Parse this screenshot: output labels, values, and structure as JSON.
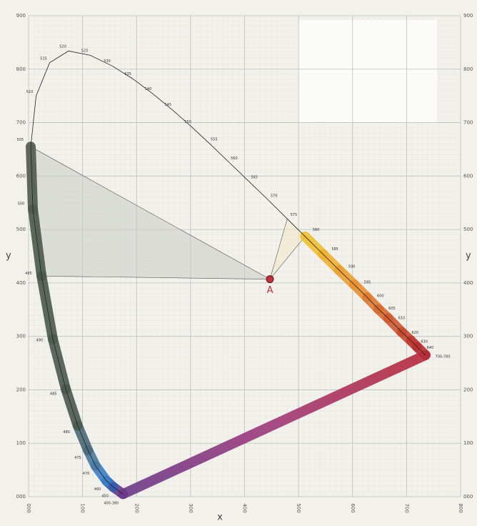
{
  "chart_data": {
    "type": "chromaticity",
    "x_label": "x",
    "y_label": "y",
    "xlim": [
      0,
      800
    ],
    "ylim": [
      0,
      900
    ],
    "xticks": [
      {
        "value": 0,
        "label": "000"
      },
      100,
      200,
      300,
      400,
      500,
      600,
      700,
      800
    ],
    "yticks": [
      {
        "value": 0,
        "label": "000"
      },
      100,
      200,
      300,
      400,
      500,
      600,
      700,
      800,
      900
    ],
    "grid": true,
    "locus": {
      "labels": [
        "400-380",
        "450",
        "460",
        "470",
        "475",
        "480",
        "485",
        "490",
        "495",
        "500",
        "505",
        "510",
        "515",
        "520",
        "525",
        "530",
        "535",
        "540",
        "545",
        "550",
        "555",
        "560",
        "565",
        "570",
        "575",
        "580",
        "585",
        "590",
        "595",
        "600",
        "605",
        "610",
        "620",
        "630",
        "640",
        "700-780"
      ],
      "x": [
        175,
        157,
        144,
        124,
        110,
        91,
        69,
        45,
        24,
        8,
        4,
        14,
        39,
        74,
        114,
        155,
        193,
        230,
        266,
        302,
        337,
        373,
        409,
        444,
        479,
        512,
        545,
        575,
        603,
        627,
        648,
        666,
        691,
        708,
        719,
        735
      ],
      "y": [
        5,
        18,
        30,
        58,
        87,
        133,
        201,
        295,
        413,
        538,
        655,
        750,
        812,
        834,
        826,
        806,
        782,
        754,
        724,
        692,
        659,
        624,
        589,
        555,
        520,
        487,
        454,
        424,
        397,
        373,
        351,
        334,
        308,
        292,
        281,
        265
      ],
      "colors": [
        "#6a3a8a",
        "#3060b0",
        "#3a80c8",
        "#4a7aa0",
        "#4a6a78",
        "#4a5a50",
        "#4a5a50",
        "#4a5a4a",
        "#4a5a4a",
        "#505a4e",
        "#505a4e",
        null,
        null,
        null,
        null,
        null,
        null,
        null,
        null,
        null,
        null,
        null,
        null,
        null,
        null,
        "#f0c030",
        "#f0b030",
        "#eca030",
        "#e89030",
        "#e07a30",
        "#d86a30",
        "#d05a30",
        "#c84a30",
        "#c03a30",
        "#b83030",
        "#b02a3a"
      ]
    },
    "point": {
      "label": "A",
      "x": 447,
      "y": 407,
      "color": "#c0303a"
    }
  }
}
